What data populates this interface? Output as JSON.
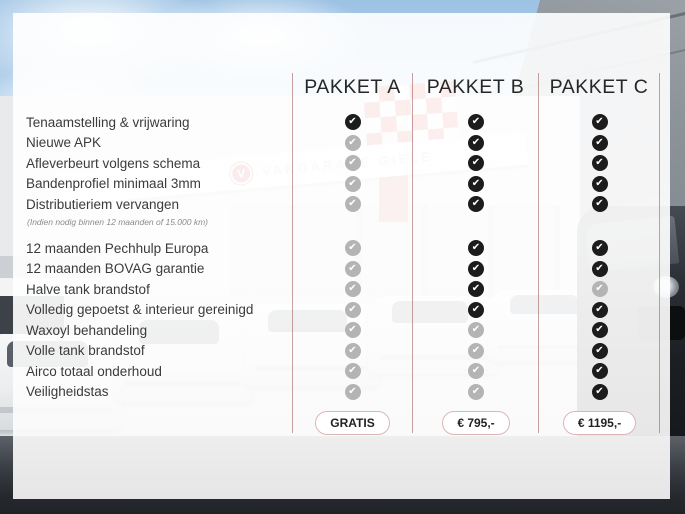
{
  "packages": [
    {
      "label": "PAKKET A",
      "price": "GRATIS"
    },
    {
      "label": "PAKKET B",
      "price": "€ 795,-"
    },
    {
      "label": "PAKKET C",
      "price": "€ 1195,-"
    }
  ],
  "features": [
    {
      "label": "Tenaamstelling & vrijwaring",
      "included": [
        true,
        true,
        true
      ]
    },
    {
      "label": "Nieuwe APK",
      "included": [
        false,
        true,
        true
      ]
    },
    {
      "label": "Afleverbeurt volgens schema",
      "included": [
        false,
        true,
        true
      ]
    },
    {
      "label": "Bandenprofiel minimaal 3mm",
      "included": [
        false,
        true,
        true
      ]
    },
    {
      "label": "Distributieriem vervangen",
      "note": "(Indien nodig binnen 12 maanden of 15.000 km)",
      "included": [
        false,
        true,
        true
      ]
    },
    {
      "label": "12 maanden Pechhulp Europa",
      "group2": true,
      "included": [
        false,
        true,
        true
      ]
    },
    {
      "label": "12 maanden BOVAG garantie",
      "included": [
        false,
        true,
        true
      ]
    },
    {
      "label": "Halve tank brandstof",
      "included": [
        false,
        true,
        false
      ]
    },
    {
      "label": "Volledig gepoetst & interieur gereinigd",
      "included": [
        false,
        true,
        true
      ]
    },
    {
      "label": "Waxoyl behandeling",
      "included": [
        false,
        false,
        true
      ]
    },
    {
      "label": "Volle tank brandstof",
      "included": [
        false,
        false,
        true
      ]
    },
    {
      "label": "Airco totaal onderhoud",
      "included": [
        false,
        false,
        true
      ]
    },
    {
      "label": "Veiligheidstas",
      "included": [
        false,
        false,
        true
      ]
    }
  ],
  "background": {
    "sign_text": "VAKGARAGE GIELE",
    "logo_letter": "V"
  },
  "colors": {
    "divider": "#b98989",
    "check_included": "#1c1c1c",
    "check_excluded": "#b4b4b4",
    "button_border": "#dcb6b6",
    "brand_red": "#c1272d",
    "text": "#3c3c3c"
  },
  "chart_data": {
    "type": "table",
    "title": "",
    "columns": [
      "Feature",
      "PAKKET A",
      "PAKKET B",
      "PAKKET C"
    ],
    "rows": [
      [
        "Tenaamstelling & vrijwaring",
        true,
        true,
        true
      ],
      [
        "Nieuwe APK",
        false,
        true,
        true
      ],
      [
        "Afleverbeurt volgens schema",
        false,
        true,
        true
      ],
      [
        "Bandenprofiel minimaal 3mm",
        false,
        true,
        true
      ],
      [
        "Distributieriem vervangen (Indien nodig binnen 12 maanden of 15.000 km)",
        false,
        true,
        true
      ],
      [
        "12 maanden Pechhulp Europa",
        false,
        true,
        true
      ],
      [
        "12 maanden BOVAG garantie",
        false,
        true,
        true
      ],
      [
        "Halve tank brandstof",
        false,
        true,
        false
      ],
      [
        "Volledig gepoetst & interieur gereinigd",
        false,
        true,
        true
      ],
      [
        "Waxoyl behandeling",
        false,
        false,
        true
      ],
      [
        "Volle tank brandstof",
        false,
        false,
        true
      ],
      [
        "Airco totaal onderhoud",
        false,
        false,
        true
      ],
      [
        "Veiligheidstas",
        false,
        false,
        true
      ]
    ],
    "footer": [
      "",
      "GRATIS",
      "€ 795,-",
      "€ 1195,-"
    ]
  }
}
